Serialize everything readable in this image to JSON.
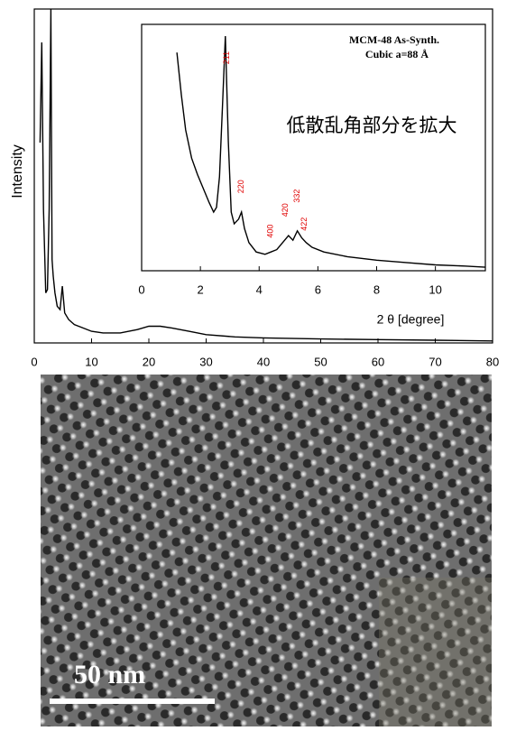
{
  "chart_data": [
    {
      "type": "line",
      "y_label": "Intensity",
      "x": [
        1.0,
        1.3,
        1.6,
        2.0,
        2.3,
        2.6,
        2.9,
        3.1,
        3.3,
        3.6,
        4.0,
        4.5,
        4.9,
        5.3,
        6.0,
        7.0,
        8.5,
        10,
        12,
        15,
        18,
        20,
        22,
        24,
        27,
        30,
        35,
        40,
        50,
        60,
        70,
        80
      ],
      "values": [
        60,
        90,
        40,
        15,
        16,
        40,
        100,
        25,
        20,
        15,
        11,
        10,
        17,
        9,
        7,
        5.5,
        4.5,
        3.5,
        3,
        3,
        4,
        5,
        5,
        4.5,
        3.5,
        2.5,
        1.8,
        1.5,
        1.2,
        1,
        0.8,
        0.6
      ],
      "color": "#000000",
      "xlim": [
        0,
        80
      ],
      "xticks": [
        0,
        10,
        20,
        30,
        40,
        50,
        60,
        70,
        80
      ],
      "ylim": [
        0,
        100
      ]
    },
    {
      "type": "line",
      "x_label": "2 θ [degree]",
      "title": "MCM-48 As-Synth.",
      "subtitle": "Cubic  a=88 Å",
      "annotation": "低散乱角部分を拡大",
      "x": [
        1.2,
        1.35,
        1.5,
        1.7,
        1.9,
        2.1,
        2.3,
        2.45,
        2.55,
        2.65,
        2.75,
        2.85,
        2.95,
        3.05,
        3.15,
        3.3,
        3.4,
        3.5,
        3.65,
        3.9,
        4.2,
        4.4,
        4.6,
        4.8,
        5.0,
        5.15,
        5.3,
        5.45,
        5.6,
        5.8,
        6.2,
        7.0,
        8.0,
        9.0,
        10.0,
        11.0,
        11.7
      ],
      "values": [
        93,
        75,
        60,
        48,
        41,
        35,
        29,
        25,
        27,
        40,
        70,
        100,
        55,
        25,
        20,
        22,
        25,
        18,
        12,
        8,
        7,
        8,
        9,
        12,
        15,
        13,
        17,
        14,
        12,
        10,
        8,
        6,
        4.5,
        3.5,
        2.5,
        2,
        1.5
      ],
      "color": "#000000",
      "xlim": [
        0,
        11.7
      ],
      "xticks": [
        0,
        2,
        4,
        6,
        8,
        10
      ],
      "ylim": [
        0,
        105
      ],
      "peaks": [
        {
          "text": "211",
          "x": 2.9,
          "y": 88
        },
        {
          "text": "220",
          "x": 3.4,
          "y": 33
        },
        {
          "text": "400",
          "x": 4.4,
          "y": 14
        },
        {
          "text": "420",
          "x": 4.9,
          "y": 23
        },
        {
          "text": "332",
          "x": 5.3,
          "y": 29
        },
        {
          "text": "422",
          "x": 5.55,
          "y": 17
        }
      ]
    }
  ],
  "image": {
    "scale_bar": "50 nm"
  }
}
